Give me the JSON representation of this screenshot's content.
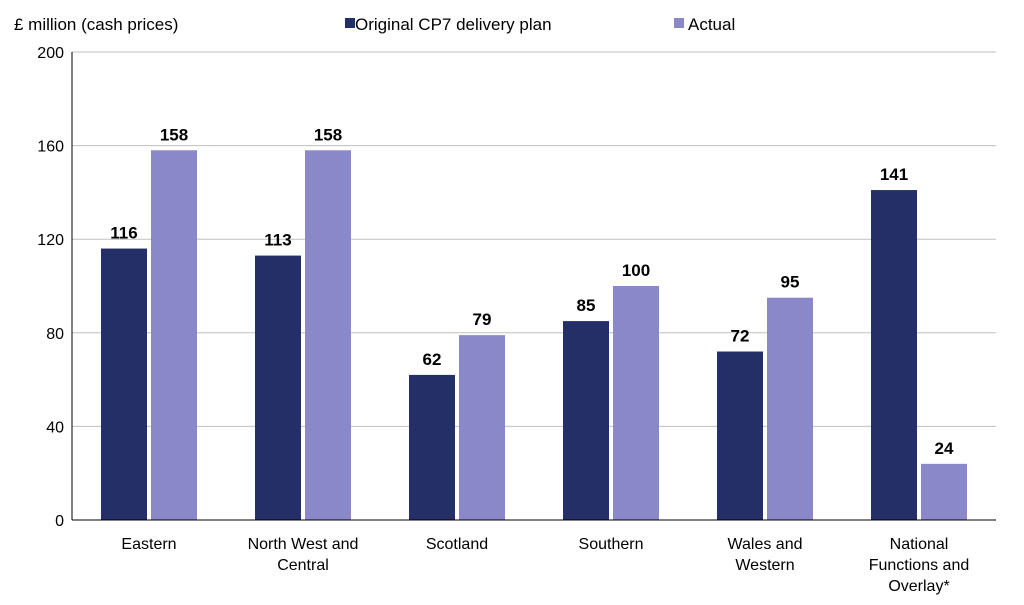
{
  "chart_data": {
    "type": "bar",
    "unit_label": "£ million (cash prices)",
    "categories": [
      [
        "Eastern"
      ],
      [
        "North West and",
        "Central"
      ],
      [
        "Scotland"
      ],
      [
        "Southern"
      ],
      [
        "Wales and",
        "Western"
      ],
      [
        "National",
        "Functions and",
        "Overlay*"
      ]
    ],
    "series": [
      {
        "name": "Original CP7 delivery plan",
        "color": "#232f66",
        "values": [
          116,
          113,
          62,
          85,
          72,
          141
        ]
      },
      {
        "name": "Actual",
        "color": "#8a88c9",
        "values": [
          158,
          158,
          79,
          100,
          95,
          24
        ]
      }
    ],
    "ylim": [
      0,
      200
    ],
    "yticks": [
      0,
      40,
      80,
      120,
      160,
      200
    ],
    "grid": true,
    "legend_position": "top",
    "gridline_color": "#bfbfbf",
    "axis_color": "#000000"
  }
}
